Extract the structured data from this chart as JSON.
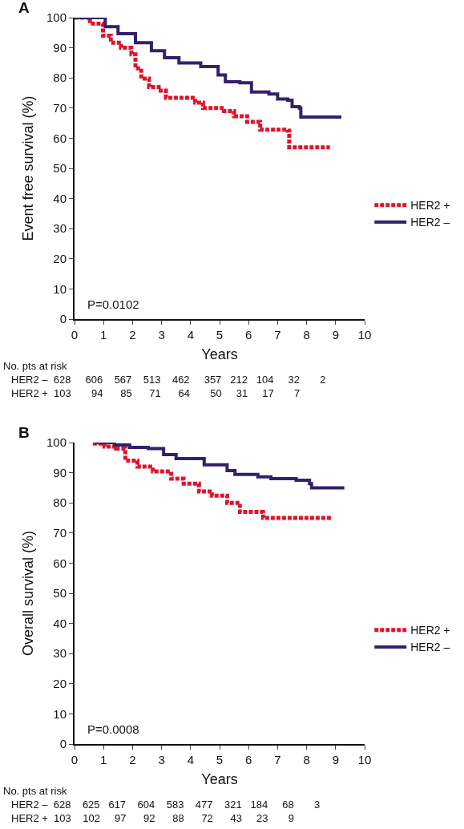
{
  "chart_data": [
    {
      "type": "step",
      "title": "A",
      "xlabel": "Years",
      "ylabel": "Event free survival (%)",
      "xlim": [
        0,
        10
      ],
      "ylim": [
        0,
        100
      ],
      "xticks": [
        0,
        1,
        2,
        3,
        4,
        5,
        6,
        7,
        8,
        9,
        10
      ],
      "yticks": [
        0,
        10,
        20,
        30,
        40,
        50,
        60,
        70,
        80,
        90,
        100
      ],
      "grid": false,
      "legend": "right",
      "marker": "none",
      "series": [
        {
          "name": "HER2 +",
          "color": "#e3122c",
          "line_style": "dotted",
          "x": [
            0,
            0.53,
            0.98,
            1.25,
            1.6,
            1.96,
            2.1,
            2.3,
            2.57,
            2.9,
            3.15,
            3.85,
            4.16,
            4.43,
            5.15,
            5.5,
            5.95,
            6.4,
            7.35,
            7.4,
            8.8
          ],
          "values": [
            100,
            98,
            94,
            91.7,
            90,
            87.8,
            83.2,
            79.8,
            77,
            75.8,
            73.4,
            73.4,
            71.8,
            70,
            69,
            67.3,
            65.4,
            62.8,
            62.5,
            57,
            57
          ]
        },
        {
          "name": "HER2 –",
          "color": "#33206b",
          "line_style": "solid",
          "x": [
            0,
            0.66,
            1.06,
            1.5,
            2.1,
            2.65,
            3.1,
            3.6,
            4.35,
            4.95,
            5.2,
            5.7,
            6.1,
            6.7,
            7.0,
            7.35,
            7.5,
            7.75,
            7.8,
            9.2
          ],
          "values": [
            100,
            100,
            97,
            94.7,
            91.7,
            89,
            86.7,
            85,
            83.8,
            81,
            78.7,
            78.4,
            75.3,
            74.7,
            73,
            72.6,
            70.5,
            70,
            67,
            67
          ]
        }
      ],
      "annotations": [
        "P=0.0102",
        "No. pts at risk",
        "HER2 –  628     606    567    513    462     357   212   104     32       2",
        "HER2 +  103       94      85      71      64       50     31     17       7"
      ]
    },
    {
      "type": "step",
      "title": "B",
      "xlabel": "Years",
      "ylabel": "Overall survival (%)",
      "xlim": [
        0,
        10
      ],
      "ylim": [
        0,
        100
      ],
      "xticks": [
        0,
        1,
        2,
        3,
        4,
        5,
        6,
        7,
        8,
        9,
        10
      ],
      "yticks": [
        0,
        10,
        20,
        30,
        40,
        50,
        60,
        70,
        80,
        90,
        100
      ],
      "grid": false,
      "legend": "right",
      "marker": "none",
      "series": [
        {
          "name": "HER2 +",
          "color": "#e3122c",
          "line_style": "dotted",
          "x": [
            0.63,
            1.03,
            1.43,
            1.75,
            2.17,
            2.7,
            3.33,
            3.76,
            4.29,
            4.74,
            5.26,
            5.7,
            6.37,
            6.5,
            8.84
          ],
          "values": [
            99.7,
            98.7,
            98,
            94,
            92,
            90.4,
            88,
            86.4,
            83.8,
            82.4,
            80,
            77,
            77,
            75,
            75
          ]
        },
        {
          "name": "HER2 –",
          "color": "#33206b",
          "line_style": "solid",
          "x": [
            0.69,
            1.38,
            1.9,
            2.54,
            3.07,
            3.5,
            3.86,
            4.47,
            5.26,
            5.53,
            6.32,
            6.77,
            7.64,
            8.1,
            8.17,
            9.3
          ],
          "values": [
            100,
            99.2,
            98.4,
            98,
            96,
            94.7,
            94.7,
            92.6,
            90.7,
            89.4,
            88.6,
            88,
            87.5,
            86.4,
            85,
            85
          ]
        }
      ],
      "annotations": [
        "P=0.0008",
        "No. pts at risk",
        "HER2 –  628    625   617    604    583    477    321   184     68       3",
        "HER2 +  103    102     97      92      88      72      43     23       9"
      ]
    }
  ]
}
